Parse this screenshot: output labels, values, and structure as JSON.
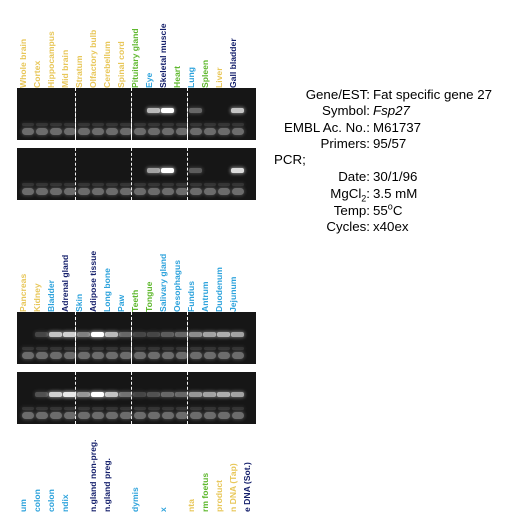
{
  "colors": {
    "yellow": "#e8c75a",
    "green": "#5fb82e",
    "blue": "#2ea3dc",
    "navy": "#141f6b",
    "gel_background": "#161616",
    "band": "#ffffff",
    "primer": "#6c6c6c"
  },
  "panels": [
    {
      "lanes": [
        {
          "label": "Whole brain",
          "color": "yellow"
        },
        {
          "label": "Cortex",
          "color": "yellow"
        },
        {
          "label": "Hippocampus",
          "color": "yellow"
        },
        {
          "label": "Mid brain",
          "color": "yellow"
        },
        {
          "label": "Stratum",
          "color": "yellow"
        },
        {
          "label": "Olfactory bulb",
          "color": "yellow"
        },
        {
          "label": "Cerebellum",
          "color": "yellow"
        },
        {
          "label": "Spinal cord",
          "color": "yellow"
        },
        {
          "label": "Pituitary gland",
          "color": "green"
        },
        {
          "label": "Eye",
          "color": "blue"
        },
        {
          "label": "Skeletal muscle",
          "color": "navy"
        },
        {
          "label": "Heart",
          "color": "green"
        },
        {
          "label": "Lung",
          "color": "blue"
        },
        {
          "label": "Spleen",
          "color": "green"
        },
        {
          "label": "Liver",
          "color": "yellow"
        },
        {
          "label": "Gall bladder",
          "color": "navy"
        }
      ],
      "separators_after_lane": [
        4,
        8,
        12
      ],
      "gels": [
        {
          "bands": [
            0,
            0,
            0,
            0,
            0,
            0,
            0,
            0,
            0,
            0.7,
            1,
            0,
            0.35,
            0,
            0,
            0.75
          ]
        },
        {
          "bands": [
            0,
            0,
            0,
            0,
            0,
            0,
            0,
            0,
            0,
            0.6,
            1,
            0,
            0.3,
            0,
            0,
            0.85
          ]
        }
      ]
    },
    {
      "lanes": [
        {
          "label": "Pancreas",
          "color": "yellow"
        },
        {
          "label": "Kidney",
          "color": "yellow"
        },
        {
          "label": "Bladder",
          "color": "blue"
        },
        {
          "label": "Adrenal gland",
          "color": "navy"
        },
        {
          "label": "Skin",
          "color": "blue"
        },
        {
          "label": "Adipose tissue",
          "color": "navy"
        },
        {
          "label": "Long bone",
          "color": "blue"
        },
        {
          "label": "Paw",
          "color": "blue"
        },
        {
          "label": "Teeth",
          "color": "green"
        },
        {
          "label": "Tongue",
          "color": "green"
        },
        {
          "label": "Salivary gland",
          "color": "blue"
        },
        {
          "label": "Oesophagus",
          "color": "blue"
        },
        {
          "label": "Fundus",
          "color": "blue"
        },
        {
          "label": "Antrum",
          "color": "blue"
        },
        {
          "label": "Duodenum",
          "color": "blue"
        },
        {
          "label": "Jejunum",
          "color": "blue"
        }
      ],
      "separators_after_lane": [
        4,
        8,
        12
      ],
      "gels": [
        {
          "bands": [
            0,
            0.2,
            0.75,
            0.8,
            0.45,
            1,
            0.7,
            0.35,
            0.2,
            0.2,
            0.3,
            0.35,
            0.5,
            0.6,
            0.65,
            0.6
          ]
        },
        {
          "bands": [
            0,
            0.25,
            0.8,
            0.9,
            0.55,
            1,
            0.75,
            0.4,
            0.2,
            0.25,
            0.35,
            0.35,
            0.55,
            0.6,
            0.65,
            0.6
          ]
        }
      ]
    },
    {
      "lanes": [
        {
          "label": "um",
          "color": "blue"
        },
        {
          "label": "colon",
          "color": "blue"
        },
        {
          "label": "colon",
          "color": "blue"
        },
        {
          "label": "ndix",
          "color": "blue"
        },
        {
          "label": "",
          "color": "blue"
        },
        {
          "label": "n.gland non-preg.",
          "color": "navy"
        },
        {
          "label": "n.gland preg.",
          "color": "navy"
        },
        {
          "label": "",
          "color": "blue"
        },
        {
          "label": "dymis",
          "color": "blue"
        },
        {
          "label": "",
          "color": "blue"
        },
        {
          "label": "x",
          "color": "blue"
        },
        {
          "label": "",
          "color": "blue"
        },
        {
          "label": "nta",
          "color": "yellow"
        },
        {
          "label": "rm foetus",
          "color": "green"
        },
        {
          "label": "product",
          "color": "yellow"
        },
        {
          "label": "n DNA (Tap)",
          "color": "yellow"
        },
        {
          "label": "e DNA (Sot.)",
          "color": "navy"
        }
      ]
    }
  ],
  "info": {
    "rows": [
      {
        "key": "Gene/EST:",
        "value": "Fat specific gene 27"
      },
      {
        "key": "Symbol:",
        "value": "Fsp27",
        "italic": true
      },
      {
        "key": "EMBL Ac. No.:",
        "value": "M61737"
      },
      {
        "key": "Primers:",
        "value": "95/57"
      },
      {
        "solo": "PCR;"
      },
      {
        "key": "Date:",
        "value": "30/1/96"
      },
      {
        "key": "MgCl",
        "sub": "2",
        "key_end": ":",
        "value": "3.5 mM"
      },
      {
        "key": "Temp:",
        "value": "55",
        "sup": "o",
        "value_end": "C"
      },
      {
        "key": "Cycles:",
        "value": "x40ex"
      }
    ]
  }
}
